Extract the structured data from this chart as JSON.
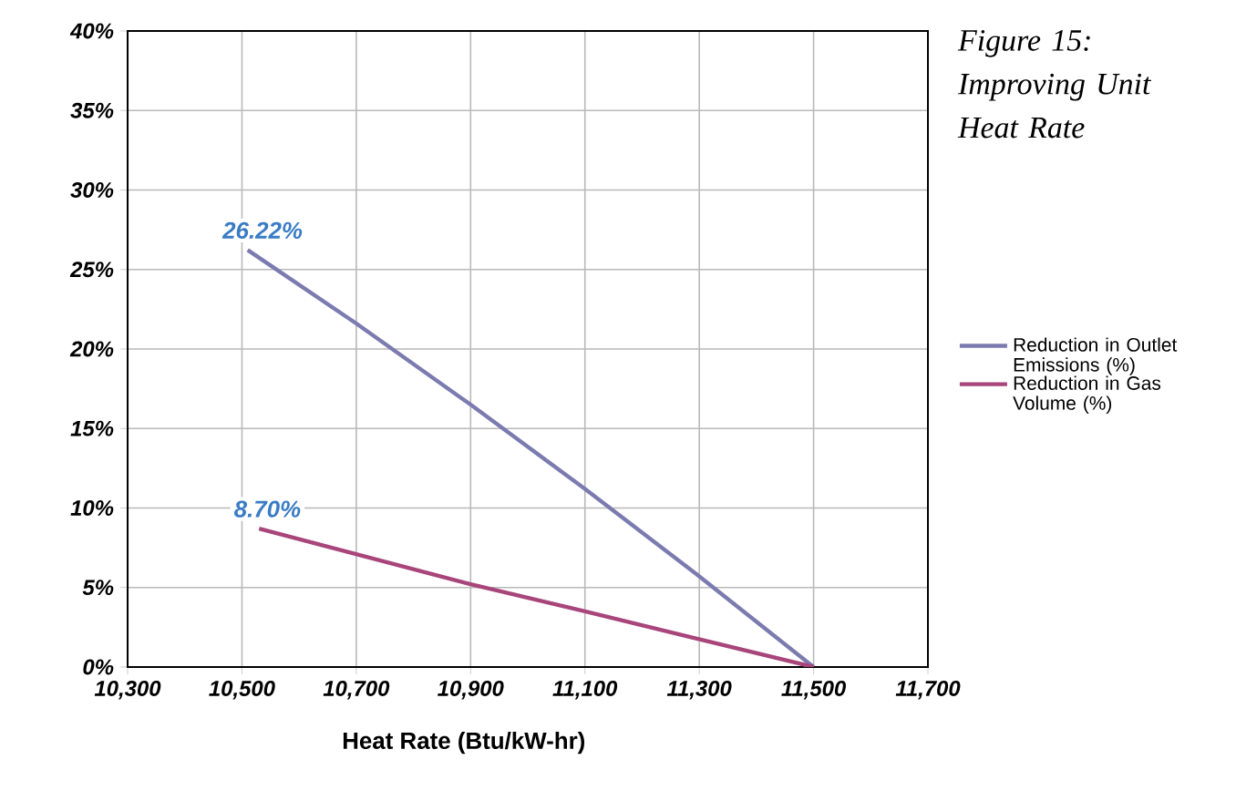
{
  "chart_data": {
    "type": "line",
    "title": "Figure 15: Improving Unit Heat Rate",
    "xlabel": "Heat Rate (Btu/kW-hr)",
    "xlim": [
      10300,
      11700
    ],
    "xticks": [
      {
        "value": 10300,
        "label": "10,300"
      },
      {
        "value": 10500,
        "label": "10,500"
      },
      {
        "value": 10700,
        "label": "10,700"
      },
      {
        "value": 10900,
        "label": "10,900"
      },
      {
        "value": 11100,
        "label": "11,100"
      },
      {
        "value": 11300,
        "label": "11,300"
      },
      {
        "value": 11500,
        "label": "11,500"
      },
      {
        "value": 11700,
        "label": "11,700"
      }
    ],
    "ylim": [
      0,
      40
    ],
    "yticks": [
      {
        "value": 0,
        "label": "0%"
      },
      {
        "value": 5,
        "label": "5%"
      },
      {
        "value": 10,
        "label": "10%"
      },
      {
        "value": 15,
        "label": "15%"
      },
      {
        "value": 20,
        "label": "20%"
      },
      {
        "value": 25,
        "label": "25%"
      },
      {
        "value": 30,
        "label": "30%"
      },
      {
        "value": 35,
        "label": "35%"
      },
      {
        "value": 40,
        "label": "40%"
      }
    ],
    "grid": true,
    "legend": "right",
    "marker": "none",
    "line_style": "solid",
    "series": [
      {
        "name": "Reduction in Outlet Emissions (%)",
        "color": "#7b7bb0",
        "x": [
          10510,
          10700,
          10900,
          11100,
          11300,
          11500
        ],
        "values": [
          26.22,
          21.6,
          16.5,
          11.2,
          5.7,
          0
        ]
      },
      {
        "name": "Reduction in Gas Volume (%)",
        "color": "#a8457a",
        "x": [
          10530,
          10900,
          11100,
          11500
        ],
        "values": [
          8.7,
          5.2,
          3.5,
          0
        ]
      }
    ],
    "annotations": [
      {
        "text": "26.22%",
        "x": 10510,
        "y": 26.22
      },
      {
        "text": "8.70%",
        "x": 10530,
        "y": 8.7
      }
    ]
  }
}
